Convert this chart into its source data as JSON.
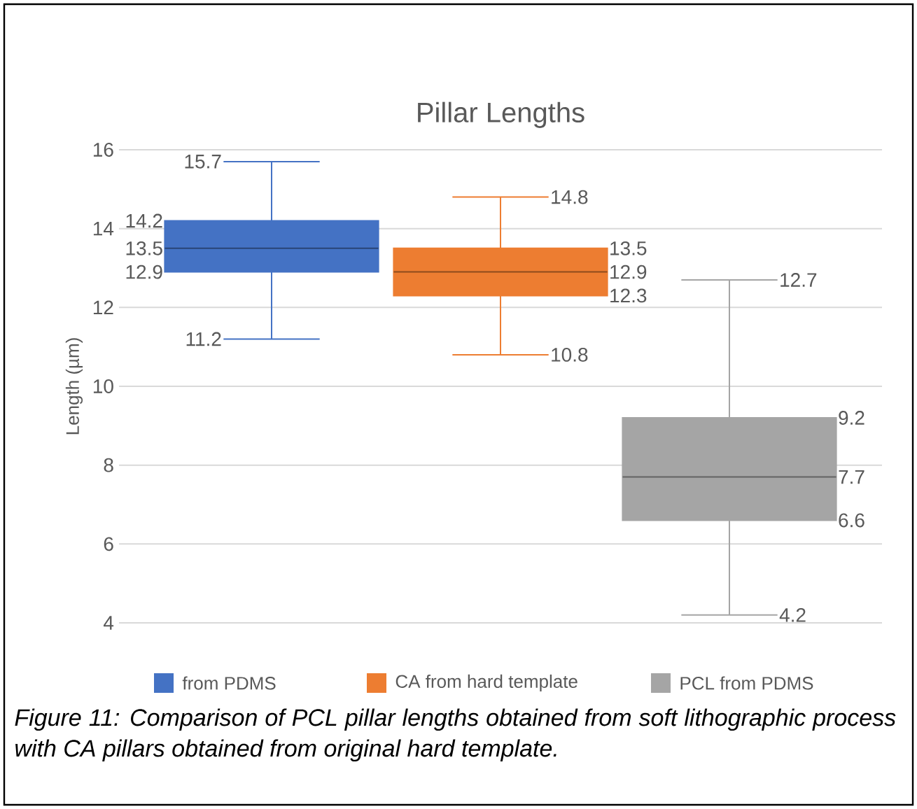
{
  "chart_data": {
    "type": "box",
    "title": "Pillar Lengths",
    "ylabel": "Length (µm)",
    "categories": [
      null
    ],
    "series": [
      {
        "name": "from PDMS",
        "color": "#4472c4",
        "boxes": [
          {
            "low": 11.2,
            "q1": 12.9,
            "median": 13.5,
            "q3": 14.2,
            "high": 15.7
          }
        ]
      },
      {
        "name": "CA from hard template",
        "color": "#ed7d31",
        "boxes": [
          {
            "low": 10.8,
            "q1": 12.3,
            "median": 12.9,
            "q3": 13.5,
            "high": 14.8
          }
        ]
      },
      {
        "name": "PCL from PDMS",
        "color": "#a5a5a5",
        "boxes": [
          {
            "low": 4.2,
            "q1": 6.6,
            "median": 7.7,
            "q3": 9.2,
            "high": 12.7
          }
        ]
      }
    ],
    "ylim": [
      4,
      16
    ],
    "yticks": [
      4,
      6,
      8,
      10,
      12,
      14,
      16
    ],
    "grid": "y",
    "legend": "bottom",
    "annotations": [
      "11.2",
      "12.9",
      "13.5",
      "14.2",
      "15.7",
      "10.8",
      "12.3",
      "12.9",
      "13.5",
      "14.8",
      "4.2",
      "6.6",
      "7.7",
      "9.2",
      "12.7",
      "Figure 11: Comparison of PCL pillar lengths obtained from soft lithographic process with CA pillars obtained from original hard template."
    ]
  }
}
